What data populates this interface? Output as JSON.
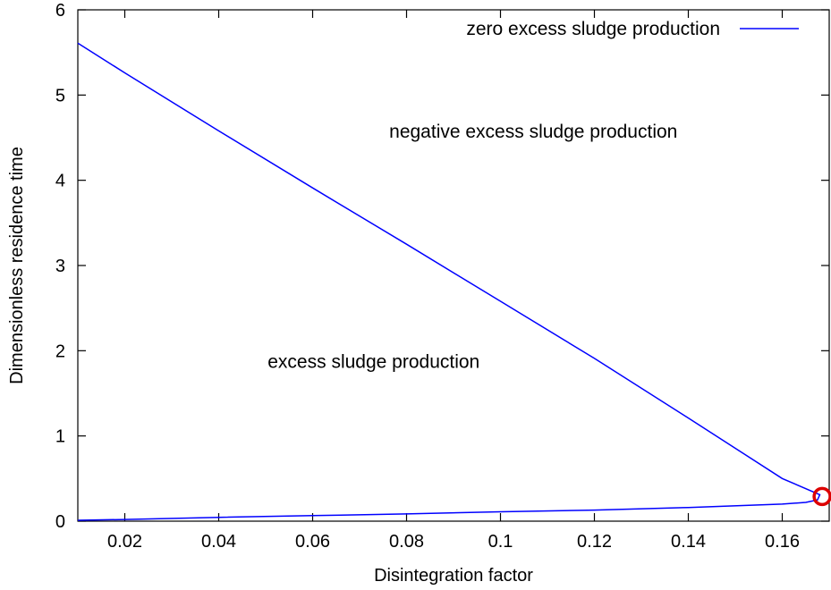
{
  "chart_data": {
    "type": "line",
    "title": "",
    "xlabel": "Disintegration factor",
    "ylabel": "Dimensionless residence time",
    "xlim": [
      0.01,
      0.17
    ],
    "ylim": [
      0,
      6
    ],
    "x_ticks": [
      "0.02",
      "0.04",
      "0.06",
      "0.08",
      "0.1",
      "0.12",
      "0.14",
      "0.16"
    ],
    "y_ticks": [
      "0",
      "1",
      "2",
      "3",
      "4",
      "5",
      "6"
    ],
    "grid": false,
    "legend": {
      "position": "top-right",
      "entries": [
        "zero excess sludge production"
      ]
    },
    "series": [
      {
        "name": "zero excess sludge production",
        "color": "#0000ff",
        "points": [
          [
            0.01,
            5.61
          ],
          [
            0.02,
            5.26
          ],
          [
            0.04,
            4.58
          ],
          [
            0.06,
            3.91
          ],
          [
            0.08,
            3.25
          ],
          [
            0.1,
            2.58
          ],
          [
            0.12,
            1.91
          ],
          [
            0.14,
            1.21
          ],
          [
            0.16,
            0.5
          ],
          [
            0.168,
            0.31
          ],
          [
            0.1675,
            0.25
          ],
          [
            0.165,
            0.22
          ],
          [
            0.16,
            0.2
          ],
          [
            0.14,
            0.16
          ],
          [
            0.12,
            0.13
          ],
          [
            0.1,
            0.11
          ],
          [
            0.08,
            0.085
          ],
          [
            0.06,
            0.065
          ],
          [
            0.04,
            0.045
          ],
          [
            0.02,
            0.02
          ],
          [
            0.01,
            0.01
          ]
        ]
      }
    ],
    "annotations": [
      {
        "text": "negative excess sludge production",
        "x": 0.107,
        "y": 4.5
      },
      {
        "text": "excess sludge production",
        "x": 0.073,
        "y": 1.8
      }
    ],
    "marker": {
      "shape": "circle",
      "color": "#dd0000",
      "x": 0.1685,
      "y": 0.29
    }
  }
}
